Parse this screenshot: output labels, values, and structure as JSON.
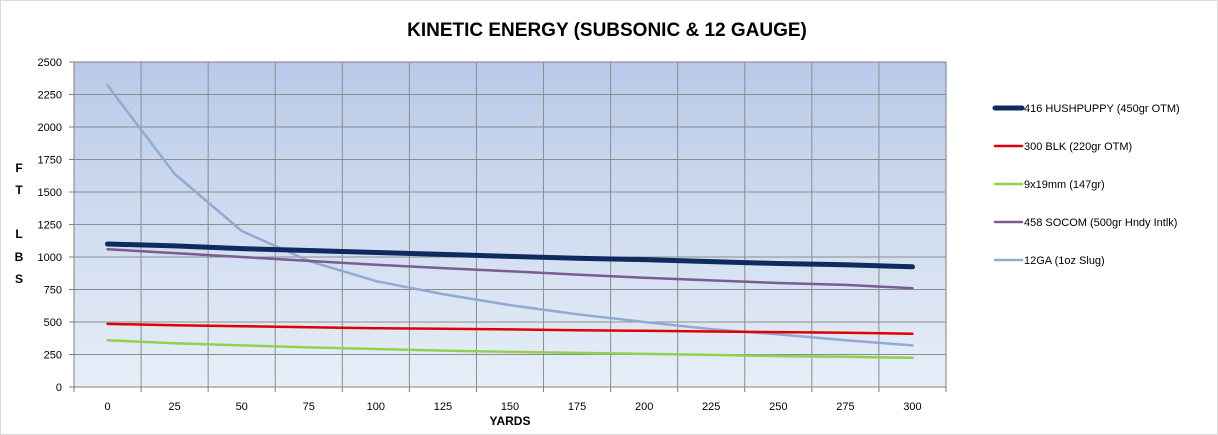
{
  "chart_data": {
    "type": "line",
    "title": "KINETIC ENERGY (SUBSONIC & 12 GAUGE)",
    "xlabel": "YARDS",
    "ylabel_letters": [
      "F",
      "T",
      "L",
      "B",
      "S"
    ],
    "x": [
      0,
      25,
      50,
      75,
      100,
      125,
      150,
      175,
      200,
      225,
      250,
      275,
      300
    ],
    "ylim": [
      0,
      2500
    ],
    "yticks": [
      "0",
      "250",
      "500",
      "750",
      "1000",
      "1250",
      "1500",
      "1750",
      "2000",
      "2250",
      "2500"
    ],
    "ytick_values": [
      0,
      250,
      500,
      750,
      1000,
      1250,
      1500,
      1750,
      2000,
      2250,
      2500
    ],
    "grid": true,
    "legend_position": "right",
    "series": [
      {
        "name": "416 HUSHPUPPY (450gr OTM)",
        "color": "#0f2a5e",
        "width": 5,
        "values": [
          1100,
          1085,
          1065,
          1050,
          1035,
          1020,
          1005,
          990,
          980,
          965,
          950,
          940,
          925
        ]
      },
      {
        "name": "300 BLK (220gr OTM)",
        "color": "#e00000",
        "width": 2.5,
        "values": [
          485,
          475,
          468,
          460,
          452,
          448,
          443,
          437,
          432,
          427,
          422,
          417,
          410
        ]
      },
      {
        "name": "9x19mm (147gr)",
        "color": "#92d050",
        "width": 2.5,
        "values": [
          360,
          337,
          320,
          305,
          292,
          280,
          270,
          262,
          255,
          247,
          238,
          232,
          225
        ]
      },
      {
        "name": "458 SOCOM (500gr Hndy Intlk)",
        "color": "#7a5c91",
        "width": 2.5,
        "values": [
          1060,
          1030,
          1000,
          970,
          940,
          915,
          890,
          865,
          840,
          820,
          800,
          785,
          760
        ]
      },
      {
        "name": "12GA (1oz Slug)",
        "color": "#93a9d1",
        "width": 2.5,
        "values": [
          2320,
          1640,
          1200,
          970,
          815,
          715,
          630,
          560,
          500,
          445,
          405,
          360,
          320
        ]
      }
    ]
  }
}
